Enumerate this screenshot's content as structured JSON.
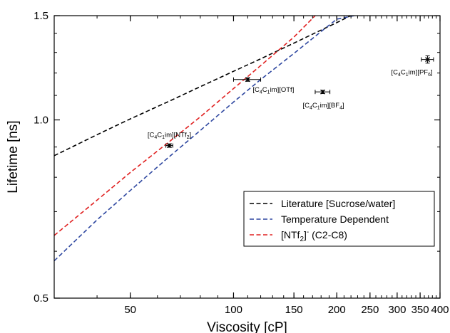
{
  "chart_data": {
    "type": "scatter",
    "title": "",
    "xlabel": "Viscosity [cP]",
    "ylabel": "Lifetime [ns]",
    "x_scale": "log",
    "y_scale": "log",
    "xlim": [
      30,
      400
    ],
    "ylim": [
      0.5,
      1.5
    ],
    "x_tick_labels": [
      "50",
      "100",
      "150",
      "200",
      "250",
      "300",
      "350",
      "400"
    ],
    "x_tick_values": [
      50,
      100,
      150,
      200,
      250,
      300,
      350,
      400
    ],
    "y_tick_labels": [
      "0.5",
      "1.0",
      "1.5"
    ],
    "y_tick_values": [
      0.5,
      1.0,
      1.5
    ],
    "grid": false,
    "legend_position": "bottom-right",
    "points": [
      {
        "label": "[C4C1im][NTf2]",
        "x": 65,
        "y": 0.905,
        "xerr": 1.5,
        "yerr": 0.006
      },
      {
        "label": "[C4C1im][OTf]",
        "x": 110,
        "y": 1.17,
        "xerr": 10,
        "yerr": 0.008
      },
      {
        "label": "[C4C1im][BF4]",
        "x": 182,
        "y": 1.115,
        "xerr": 9,
        "yerr": 0.007
      },
      {
        "label": "[C4C1im][PF6]",
        "x": 368,
        "y": 1.265,
        "xerr": 15,
        "yerr": 0.018
      }
    ],
    "series": [
      {
        "name": "Literature [Sucrose/water]",
        "color": "#000000",
        "style": "dashed",
        "x": [
          30,
          40,
          50,
          65,
          80,
          100,
          120,
          150,
          180,
          200,
          230
        ],
        "y": [
          0.87,
          0.944,
          1.004,
          1.076,
          1.138,
          1.208,
          1.268,
          1.348,
          1.418,
          1.46,
          1.52
        ]
      },
      {
        "name": "Temperature Dependent",
        "color": "#2e47a0",
        "style": "dashed",
        "x": [
          30,
          40,
          50,
          65,
          80,
          100,
          120,
          150,
          180,
          200,
          225
        ],
        "y": [
          0.578,
          0.678,
          0.76,
          0.867,
          0.96,
          1.072,
          1.17,
          1.295,
          1.41,
          1.48,
          1.5
        ]
      },
      {
        "name": "[NTf2]- (C2-C8)",
        "color": "#e02020",
        "style": "dashed",
        "x": [
          30,
          40,
          50,
          65,
          80,
          100,
          120,
          150,
          175
        ],
        "y": [
          0.638,
          0.732,
          0.815,
          0.919,
          1.012,
          1.13,
          1.235,
          1.38,
          1.51
        ]
      }
    ]
  },
  "legend": {
    "items": [
      {
        "pre": "Literature [Sucrose/water]",
        "sub": "",
        "post": ""
      },
      {
        "pre": "Temperature Dependent",
        "sub": "",
        "post": ""
      },
      {
        "pre": "[NTf",
        "sub": "2",
        "post": "]",
        "sup": "-",
        "tail": " (C2-C8)"
      }
    ]
  },
  "point_labels": [
    {
      "parts": [
        "[C",
        "4",
        "C",
        "1",
        "im][NTf",
        "2",
        "]"
      ]
    },
    {
      "parts": [
        "[C",
        "4",
        "C",
        "1",
        "im][OTf]"
      ]
    },
    {
      "parts": [
        "[C",
        "4",
        "C",
        "1",
        "im][BF",
        "4",
        "]"
      ]
    },
    {
      "parts": [
        "[C",
        "4",
        "C",
        "1",
        "im][PF",
        "6",
        "]"
      ]
    }
  ]
}
